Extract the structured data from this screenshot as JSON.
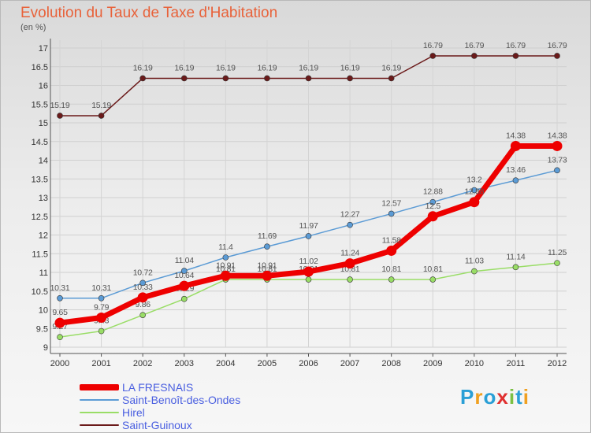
{
  "chart_data": {
    "type": "line",
    "title": "Evolution du Taux de Taxe d'Habitation",
    "ylabel": "(en %)",
    "xlabel": "",
    "categories": [
      "2000",
      "2001",
      "2002",
      "2003",
      "2004",
      "2005",
      "2006",
      "2007",
      "2008",
      "2009",
      "2010",
      "2011",
      "2012"
    ],
    "ylim": [
      9,
      17
    ],
    "yticks": [
      "9",
      "9.5",
      "10",
      "10.5",
      "11",
      "11.5",
      "12",
      "12.5",
      "13",
      "13.5",
      "14",
      "14.5",
      "15",
      "15.5",
      "16",
      "16.5",
      "17"
    ],
    "grid": true,
    "legend_position": "bottom-left",
    "series": [
      {
        "name": "Saint-Guinoux",
        "color": "#6b1a1a",
        "values": [
          15.19,
          15.19,
          16.19,
          16.19,
          16.19,
          16.19,
          16.19,
          16.19,
          16.19,
          16.79,
          16.79,
          16.79,
          16.79
        ],
        "labels": [
          "15.19",
          "15.19",
          "16.19",
          "16.19",
          "16.19",
          "16.19",
          "16.19",
          "16.19",
          "16.19",
          "16.79",
          "16.79",
          "16.79",
          "16.79"
        ]
      },
      {
        "name": "Saint-Benoît-des-Ondes",
        "color": "#5b9bd5",
        "values": [
          10.31,
          10.31,
          10.72,
          11.04,
          11.4,
          11.69,
          11.97,
          12.27,
          12.57,
          12.88,
          13.2,
          13.46,
          13.73
        ],
        "labels": [
          "10.31",
          "10.31",
          "10.72",
          "11.04",
          "11.4",
          "11.69",
          "11.97",
          "12.27",
          "12.57",
          "12.88",
          "13.2",
          "13.46",
          "13.73"
        ]
      },
      {
        "name": "Hirel",
        "color": "#99dd66",
        "values": [
          9.27,
          9.43,
          9.86,
          10.29,
          10.81,
          10.81,
          10.81,
          10.81,
          10.81,
          10.81,
          11.03,
          11.14,
          11.25
        ],
        "labels": [
          "9.27",
          "9.43",
          "9.86",
          "10.29",
          "10.81",
          "10.81",
          "10.81",
          "10.81",
          "10.81",
          "10.81",
          "11.03",
          "11.14",
          "11.25"
        ]
      },
      {
        "name": "LA FRESNAIS",
        "color": "#ee0000",
        "values": [
          9.65,
          9.79,
          10.33,
          10.64,
          10.91,
          10.91,
          11.02,
          11.24,
          11.58,
          12.5,
          12.88,
          14.38,
          14.38
        ],
        "labels": [
          "9.65",
          "9.79",
          "10.33",
          "10.64",
          "10.91",
          "10.91",
          "11.02",
          "11.24",
          "11.58",
          "12.5",
          "12.88",
          "14.38",
          "14.38"
        ]
      }
    ]
  },
  "legend": [
    {
      "name": "LA FRESNAIS",
      "color": "#ee0000"
    },
    {
      "name": "Saint-Benoît-des-Ondes",
      "color": "#5b9bd5"
    },
    {
      "name": "Hirel",
      "color": "#99dd66"
    },
    {
      "name": "Saint-Guinoux",
      "color": "#6b1a1a"
    }
  ],
  "brand": {
    "letters": [
      "P",
      "r",
      "o",
      "x",
      "i",
      "t",
      "i"
    ],
    "colors": [
      "#2a9fd6",
      "#f0a020",
      "#2a9fd6",
      "#e03030",
      "#7bc043",
      "#2a9fd6",
      "#f0a020"
    ]
  }
}
